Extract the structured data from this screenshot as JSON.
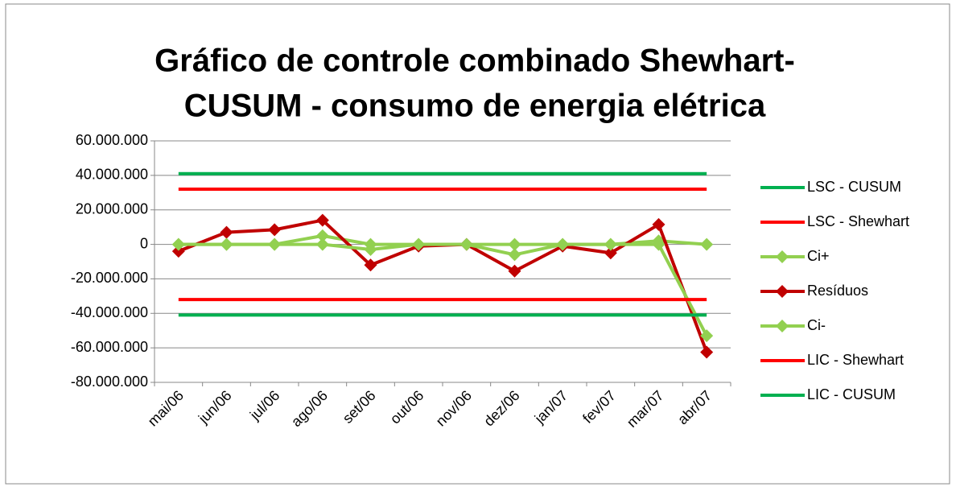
{
  "chart_data": {
    "type": "line",
    "title": [
      "Gráfico de controle combinado Shewhart-",
      "CUSUM - consumo de energia elétrica"
    ],
    "categories": [
      "mai/06",
      "jun/06",
      "jul/06",
      "ago/06",
      "set/06",
      "out/06",
      "nov/06",
      "dez/06",
      "jan/07",
      "fev/07",
      "mar/07",
      "abr/07"
    ],
    "series": [
      {
        "name": "LSC - CUSUM",
        "color": "#00b050",
        "values": [
          41000000,
          41000000,
          41000000,
          41000000,
          41000000,
          41000000,
          41000000,
          41000000,
          41000000,
          41000000,
          41000000,
          41000000
        ]
      },
      {
        "name": "LSC - Shewhart",
        "color": "#ff0000",
        "values": [
          32000000,
          32000000,
          32000000,
          32000000,
          32000000,
          32000000,
          32000000,
          32000000,
          32000000,
          32000000,
          32000000,
          32000000
        ]
      },
      {
        "name": "Ci+",
        "color": "#92d050",
        "marker": "diamond",
        "values": [
          0,
          0,
          0,
          5000000,
          0,
          0,
          0,
          0,
          0,
          0,
          2000000,
          0
        ]
      },
      {
        "name": "Resíduos",
        "color": "#c00000",
        "marker": "diamond",
        "values": [
          -4000000,
          7000000,
          8500000,
          14000000,
          -12000000,
          -1000000,
          0,
          -15500000,
          -1000000,
          -5000000,
          11500000,
          -62500000
        ]
      },
      {
        "name": "Ci-",
        "color": "#92d050",
        "marker": "diamond",
        "values": [
          0,
          0,
          0,
          0,
          -3000000,
          0,
          0,
          -6000000,
          0,
          0,
          0,
          -53000000
        ]
      },
      {
        "name": "LIC - Shewhart",
        "color": "#ff0000",
        "values": [
          -32000000,
          -32000000,
          -32000000,
          -32000000,
          -32000000,
          -32000000,
          -32000000,
          -32000000,
          -32000000,
          -32000000,
          -32000000,
          -32000000
        ]
      },
      {
        "name": "LIC - CUSUM",
        "color": "#00b050",
        "values": [
          -41000000,
          -41000000,
          -41000000,
          -41000000,
          -41000000,
          -41000000,
          -41000000,
          -41000000,
          -41000000,
          -41000000,
          -41000000,
          -41000000
        ]
      }
    ],
    "ylim": [
      -80000000,
      60000000
    ],
    "yticks": [
      {
        "value": -80000000,
        "label": "-80.000.000"
      },
      {
        "value": -60000000,
        "label": "-60.000.000"
      },
      {
        "value": -40000000,
        "label": "-40.000.000"
      },
      {
        "value": -20000000,
        "label": "-20.000.000"
      },
      0,
      {
        "value": 20000000,
        "label": "20.000.000"
      },
      {
        "value": 40000000,
        "label": "40.000.000"
      },
      {
        "value": 60000000,
        "label": "60.000.000"
      }
    ],
    "grid": true,
    "legend": "right"
  }
}
